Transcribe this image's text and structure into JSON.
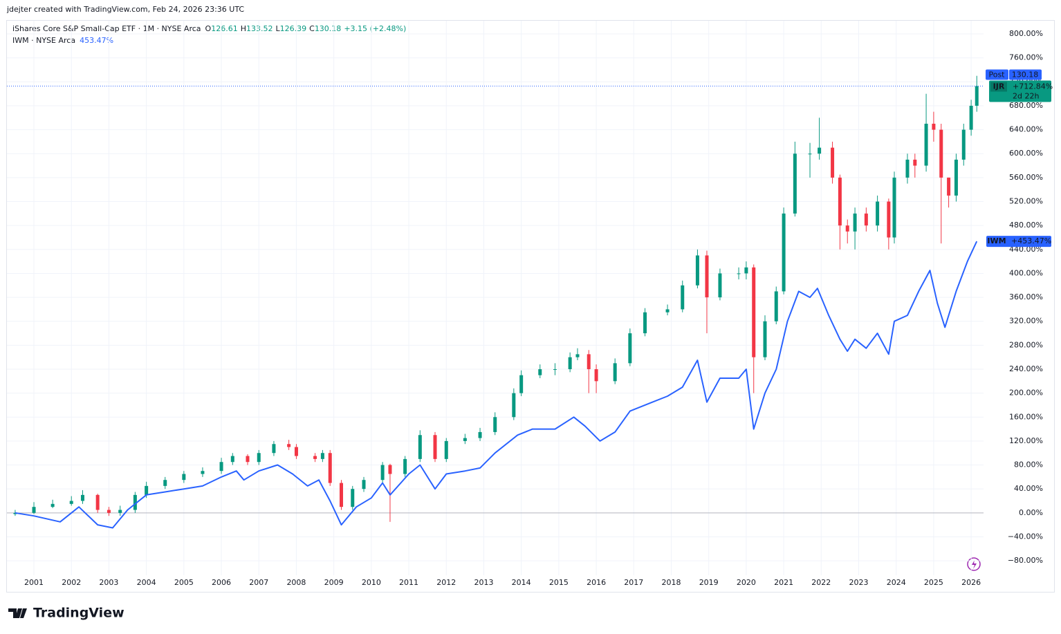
{
  "header": {
    "credit": "jdejter created with TradingView.com, Feb 24, 2026 23:36 UTC",
    "symbol": "iShares Core S&P Small-Cap ETF · 1M · NYSE Arca",
    "ohlc": [
      {
        "label": "O",
        "value": "126.61"
      },
      {
        "label": "H",
        "value": "133.52"
      },
      {
        "label": "L",
        "value": "126.39"
      },
      {
        "label": "C",
        "value": "130.18"
      }
    ],
    "change": "+3.15 (+2.48%)",
    "compare_symbol": "IWM · NYSE Arca",
    "compare_value": "453.47%"
  },
  "badges": {
    "post": "Post",
    "post_price": "130.18",
    "ijr_pct": "+712.84%",
    "countdown": "2d 22h",
    "iwm_pct": "+453.47%"
  },
  "footer": {
    "logo": "TradingView"
  },
  "chart_data": {
    "type": "candlestick",
    "grid": true,
    "xlim": [
      2000.28,
      2026.33
    ],
    "xticks": [
      2001,
      2002,
      2003,
      2004,
      2005,
      2006,
      2007,
      2008,
      2009,
      2010,
      2011,
      2012,
      2013,
      2014,
      2015,
      2016,
      2017,
      2018,
      2019,
      2020,
      2021,
      2022,
      2023,
      2024,
      2025,
      2026
    ],
    "ylim": [
      -133,
      822
    ],
    "yticks": [
      {
        "value": -80,
        "label": "−80.00%"
      },
      {
        "value": -40,
        "label": "−40.00%"
      },
      {
        "value": 0,
        "label": "0.00%"
      },
      {
        "value": 40,
        "label": "40.00%"
      },
      {
        "value": 80,
        "label": "80.00%"
      },
      {
        "value": 120,
        "label": "120.00%"
      },
      {
        "value": 160,
        "label": "160.00%"
      },
      {
        "value": 200,
        "label": "200.00%"
      },
      {
        "value": 240,
        "label": "240.00%"
      },
      {
        "value": 280,
        "label": "280.00%"
      },
      {
        "value": 320,
        "label": "320.00%"
      },
      {
        "value": 360,
        "label": "360.00%"
      },
      {
        "value": 400,
        "label": "400.00%"
      },
      {
        "value": 440,
        "label": "440.00%"
      },
      {
        "value": 480,
        "label": "480.00%"
      },
      {
        "value": 520,
        "label": "520.00%"
      },
      {
        "value": 560,
        "label": "560.00%"
      },
      {
        "value": 600,
        "label": "600.00%"
      },
      {
        "value": 640,
        "label": "640.00%"
      },
      {
        "value": 680,
        "label": "680.00%"
      },
      {
        "value": 720,
        "label": "720.00%"
      },
      {
        "value": 760,
        "label": "760.00%"
      },
      {
        "value": 800,
        "label": "800.00%"
      }
    ],
    "series": [
      {
        "name": "IJR",
        "type": "candlestick",
        "up_color": "#089981",
        "down_color": "#f23645",
        "x": [
          2000.5,
          2001,
          2001.5,
          2002,
          2002.3,
          2002.7,
          2003,
          2003.3,
          2003.7,
          2004,
          2004.5,
          2005,
          2005.5,
          2006,
          2006.3,
          2006.7,
          2007,
          2007.4,
          2007.8,
          2008,
          2008.5,
          2008.7,
          2008.9,
          2009.2,
          2009.5,
          2009.8,
          2010.3,
          2010.5,
          2010.9,
          2011.3,
          2011.7,
          2012,
          2012.5,
          2012.9,
          2013.3,
          2013.8,
          2014,
          2014.5,
          2014.9,
          2015.3,
          2015.5,
          2015.8,
          2016,
          2016.5,
          2016.9,
          2017.3,
          2017.9,
          2018.3,
          2018.7,
          2018.95,
          2019.3,
          2019.8,
          2020,
          2020.2,
          2020.5,
          2020.8,
          2021,
          2021.3,
          2021.7,
          2021.95,
          2022.3,
          2022.5,
          2022.7,
          2022.9,
          2023.2,
          2023.5,
          2023.8,
          2023.95,
          2024.3,
          2024.5,
          2024.8,
          2025,
          2025.2,
          2025.4,
          2025.6,
          2025.8,
          2026,
          2026.15
        ],
        "open": [
          -2,
          0,
          10,
          15,
          20,
          30,
          5,
          0,
          5,
          30,
          45,
          55,
          65,
          70,
          85,
          95,
          85,
          100,
          115,
          110,
          95,
          90,
          100,
          50,
          10,
          40,
          55,
          80,
          65,
          90,
          130,
          90,
          120,
          125,
          135,
          160,
          200,
          230,
          240,
          240,
          260,
          265,
          240,
          220,
          250,
          300,
          335,
          340,
          380,
          430,
          360,
          400,
          400,
          410,
          260,
          320,
          370,
          500,
          600,
          600,
          610,
          560,
          480,
          470,
          500,
          480,
          520,
          460,
          560,
          590,
          580,
          650,
          640,
          560,
          530,
          590,
          640,
          680
        ],
        "high": [
          5,
          18,
          22,
          28,
          38,
          32,
          10,
          12,
          35,
          52,
          60,
          70,
          76,
          92,
          100,
          98,
          105,
          120,
          122,
          115,
          100,
          105,
          105,
          55,
          45,
          60,
          85,
          82,
          95,
          138,
          135,
          125,
          132,
          142,
          168,
          208,
          238,
          248,
          250,
          268,
          275,
          272,
          248,
          258,
          308,
          342,
          348,
          388,
          440,
          438,
          408,
          410,
          420,
          415,
          330,
          378,
          510,
          620,
          618,
          660,
          620,
          565,
          490,
          510,
          510,
          530,
          525,
          570,
          600,
          600,
          700,
          670,
          650,
          560,
          600,
          650,
          690,
          730
        ],
        "low": [
          -5,
          -2,
          8,
          12,
          15,
          0,
          -5,
          -5,
          0,
          25,
          40,
          50,
          60,
          65,
          80,
          80,
          80,
          95,
          105,
          90,
          85,
          85,
          45,
          5,
          5,
          35,
          50,
          -15,
          60,
          85,
          85,
          85,
          115,
          120,
          130,
          155,
          195,
          225,
          230,
          235,
          255,
          200,
          200,
          215,
          245,
          295,
          330,
          335,
          375,
          300,
          355,
          390,
          390,
          200,
          255,
          315,
          365,
          495,
          560,
          590,
          550,
          440,
          450,
          440,
          470,
          470,
          440,
          450,
          550,
          560,
          570,
          620,
          450,
          510,
          520,
          580,
          630,
          670
        ],
        "close": [
          0,
          10,
          15,
          20,
          30,
          5,
          0,
          5,
          30,
          45,
          55,
          65,
          70,
          85,
          95,
          85,
          100,
          115,
          110,
          95,
          90,
          100,
          50,
          10,
          40,
          55,
          80,
          65,
          90,
          130,
          90,
          120,
          125,
          135,
          160,
          200,
          230,
          240,
          240,
          260,
          265,
          240,
          220,
          250,
          300,
          335,
          340,
          380,
          430,
          360,
          400,
          400,
          410,
          260,
          320,
          370,
          500,
          600,
          600,
          610,
          560,
          480,
          470,
          500,
          480,
          520,
          460,
          560,
          590,
          580,
          650,
          640,
          560,
          530,
          590,
          640,
          680,
          712.84
        ]
      },
      {
        "name": "IWM",
        "type": "line",
        "color": "#2962ff",
        "x": [
          2000.5,
          2001,
          2001.7,
          2002.2,
          2002.7,
          2003.1,
          2003.5,
          2004,
          2004.5,
          2005,
          2005.5,
          2006,
          2006.4,
          2006.6,
          2007,
          2007.5,
          2007.9,
          2008.3,
          2008.6,
          2008.9,
          2009.2,
          2009.6,
          2010,
          2010.3,
          2010.5,
          2011,
          2011.3,
          2011.7,
          2012,
          2012.5,
          2012.9,
          2013.3,
          2013.9,
          2014.3,
          2014.9,
          2015.4,
          2015.7,
          2016.1,
          2016.5,
          2016.9,
          2017.5,
          2017.9,
          2018.3,
          2018.7,
          2018.95,
          2019.3,
          2019.8,
          2020,
          2020.2,
          2020.5,
          2020.8,
          2021.1,
          2021.4,
          2021.7,
          2021.9,
          2022.2,
          2022.5,
          2022.7,
          2022.9,
          2023.2,
          2023.5,
          2023.8,
          2023.95,
          2024.3,
          2024.6,
          2024.9,
          2025.1,
          2025.3,
          2025.6,
          2025.9,
          2026.15
        ],
        "values": [
          0,
          -5,
          -15,
          10,
          -20,
          -25,
          5,
          30,
          35,
          40,
          45,
          60,
          70,
          55,
          70,
          80,
          65,
          45,
          55,
          20,
          -20,
          10,
          25,
          50,
          30,
          65,
          80,
          40,
          65,
          70,
          75,
          100,
          130,
          140,
          140,
          160,
          145,
          120,
          135,
          170,
          185,
          195,
          210,
          255,
          185,
          225,
          225,
          240,
          140,
          200,
          240,
          320,
          370,
          360,
          375,
          330,
          290,
          270,
          290,
          275,
          300,
          265,
          320,
          330,
          370,
          405,
          350,
          310,
          370,
          420,
          453.47
        ]
      }
    ]
  }
}
